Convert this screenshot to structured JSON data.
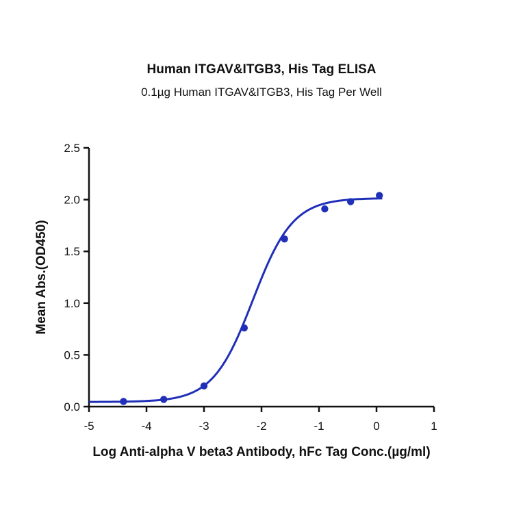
{
  "chart_data": {
    "type": "line",
    "title": "Human ITGAV&ITGB3, His Tag ELISA",
    "subtitle": "0.1µg Human ITGAV&ITGB3, His Tag Per Well",
    "xlabel": "Log Anti-alpha V beta3 Antibody, hFc Tag Conc.(µg/ml)",
    "ylabel": "Mean Abs.(OD450)",
    "xlim": [
      -5,
      1
    ],
    "ylim": [
      0,
      2.5
    ],
    "xticks": [
      "-5",
      "-4",
      "-3",
      "-2",
      "-1",
      "0",
      "1"
    ],
    "yticks": [
      "0.0",
      "0.5",
      "1.0",
      "1.5",
      "2.0",
      "2.5"
    ],
    "grid": false,
    "series": [
      {
        "color": "#1f2fb8",
        "points": [
          {
            "x": -4.4,
            "y": 0.05
          },
          {
            "x": -3.7,
            "y": 0.07
          },
          {
            "x": -3.0,
            "y": 0.2
          },
          {
            "x": -2.3,
            "y": 0.76
          },
          {
            "x": -1.6,
            "y": 1.62
          },
          {
            "x": -0.9,
            "y": 1.91
          },
          {
            "x": -0.45,
            "y": 1.98
          },
          {
            "x": 0.05,
            "y": 2.04
          }
        ],
        "fit": {
          "bottom": 0.045,
          "top": 2.015,
          "log_ec50": -2.15,
          "hill_slope": 1.25,
          "x_range": [
            -5,
            0.1
          ]
        }
      }
    ]
  }
}
